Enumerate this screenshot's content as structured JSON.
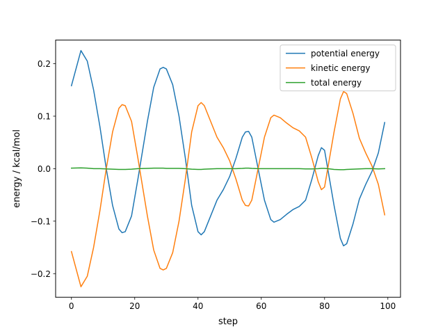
{
  "chart_data": {
    "type": "line",
    "title": "",
    "xlabel": "step",
    "ylabel": "energy / kcal/mol",
    "xlim": [
      -5,
      104
    ],
    "ylim": [
      -0.245,
      0.245
    ],
    "xticks": [
      0,
      20,
      40,
      60,
      80,
      100
    ],
    "xtick_labels": [
      "0",
      "20",
      "40",
      "60",
      "80",
      "100"
    ],
    "yticks": [
      -0.2,
      -0.1,
      0.0,
      0.1,
      0.2
    ],
    "ytick_labels": [
      "−0.2",
      "−0.1",
      "0.0",
      "0.1",
      "0.2"
    ],
    "grid": false,
    "legend_position": "upper right",
    "x": [
      0,
      3,
      5,
      7,
      9,
      11,
      13,
      15,
      16,
      17,
      19,
      21,
      24,
      26,
      28,
      29,
      30,
      32,
      34,
      36,
      38,
      40,
      41,
      42,
      44,
      46,
      48,
      50,
      52,
      54,
      55,
      56,
      57,
      59,
      61,
      63,
      64,
      66,
      68,
      70,
      72,
      74,
      76,
      78,
      79,
      80,
      81,
      83,
      85,
      86,
      87,
      89,
      91,
      93,
      95,
      97,
      99
    ],
    "series": [
      {
        "name": "potential energy",
        "color": "#1f77b4",
        "values": [
          0.158,
          0.225,
          0.205,
          0.15,
          0.08,
          0.0,
          -0.07,
          -0.115,
          -0.122,
          -0.12,
          -0.09,
          -0.02,
          0.09,
          0.155,
          0.19,
          0.193,
          0.19,
          0.16,
          0.1,
          0.02,
          -0.07,
          -0.12,
          -0.126,
          -0.12,
          -0.09,
          -0.06,
          -0.04,
          -0.015,
          0.02,
          0.06,
          0.07,
          0.071,
          0.06,
          0.0,
          -0.06,
          -0.097,
          -0.102,
          -0.097,
          -0.087,
          -0.078,
          -0.072,
          -0.06,
          -0.02,
          0.025,
          0.04,
          0.035,
          0.0,
          -0.07,
          -0.133,
          -0.147,
          -0.143,
          -0.105,
          -0.058,
          -0.03,
          -0.005,
          0.03,
          0.088
        ]
      },
      {
        "name": "kinetic energy",
        "color": "#ff7f0e",
        "values": [
          -0.158,
          -0.225,
          -0.205,
          -0.15,
          -0.08,
          0.0,
          0.07,
          0.115,
          0.122,
          0.12,
          0.09,
          0.02,
          -0.09,
          -0.155,
          -0.19,
          -0.193,
          -0.19,
          -0.16,
          -0.1,
          -0.02,
          0.07,
          0.12,
          0.126,
          0.12,
          0.09,
          0.06,
          0.04,
          0.015,
          -0.02,
          -0.06,
          -0.07,
          -0.071,
          -0.06,
          0.0,
          0.06,
          0.097,
          0.102,
          0.097,
          0.087,
          0.078,
          0.072,
          0.06,
          0.02,
          -0.025,
          -0.04,
          -0.035,
          0.0,
          0.07,
          0.133,
          0.147,
          0.143,
          0.105,
          0.058,
          0.03,
          0.005,
          -0.03,
          -0.088
        ]
      },
      {
        "name": "total energy",
        "color": "#2ca02c",
        "values": [
          0.001,
          0.0015,
          0.001,
          0.0,
          0.0,
          -0.0005,
          -0.001,
          -0.0015,
          -0.0015,
          -0.0015,
          -0.001,
          0.0,
          0.0005,
          0.001,
          0.001,
          0.001,
          0.0005,
          0.0005,
          0.0005,
          0.0,
          -0.001,
          -0.0015,
          -0.0015,
          -0.001,
          -0.0005,
          0.0,
          0.0,
          0.0,
          0.0,
          0.0005,
          0.001,
          0.001,
          0.0005,
          0.0,
          0.0,
          0.0,
          0.0,
          0.0,
          0.0,
          0.0,
          0.0,
          -0.0005,
          -0.0005,
          0.0,
          0.0005,
          0.0005,
          0.0,
          -0.0015,
          -0.002,
          -0.002,
          -0.0015,
          -0.001,
          -0.0005,
          0.0,
          0.0,
          -0.0005,
          0.0
        ]
      }
    ]
  }
}
